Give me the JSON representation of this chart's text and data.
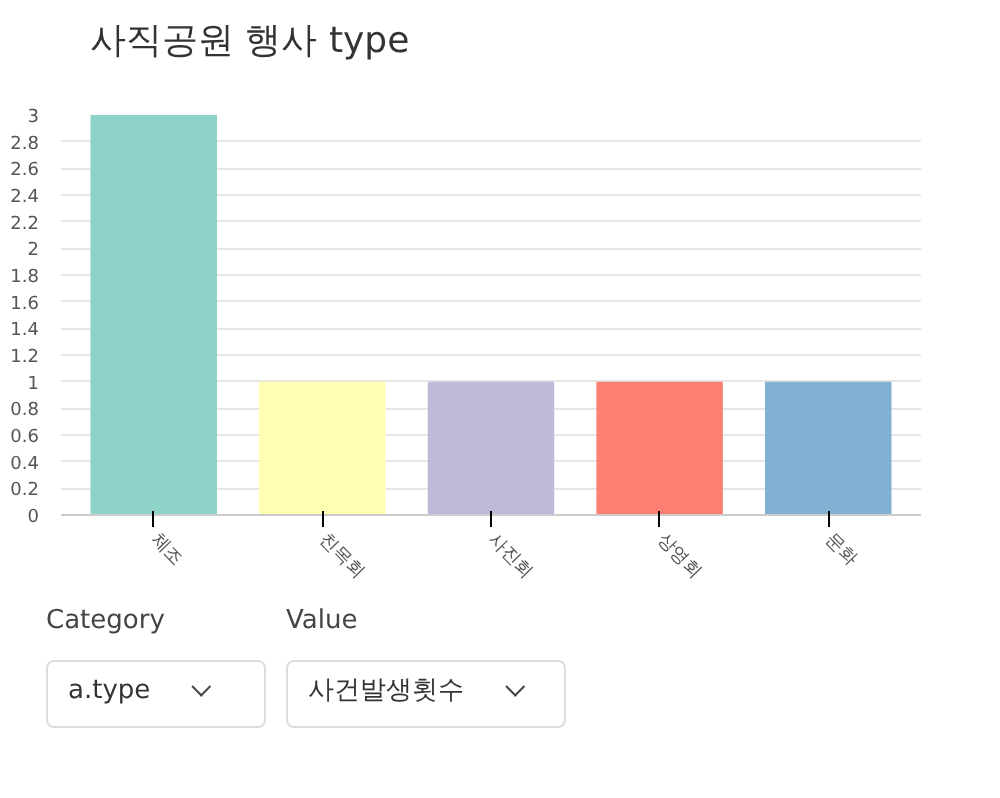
{
  "chart_data": {
    "type": "bar",
    "title": "사직공원 행사 type",
    "categories": [
      "체조",
      "친목회",
      "사진회",
      "상영회",
      "문화"
    ],
    "values": [
      3,
      1,
      1,
      1,
      1
    ],
    "colors": [
      "#8dd3c7",
      "#ffffb3",
      "#bebada",
      "#fb8072",
      "#80b1d3"
    ],
    "ylim": [
      0,
      3
    ],
    "yticks": [
      0,
      0.2,
      0.4,
      0.6,
      0.8,
      1,
      1.2,
      1.4,
      1.6,
      1.8,
      2,
      2.2,
      2.4,
      2.6,
      2.8,
      3
    ],
    "grid": "y",
    "annotations": [
      "Category",
      "a.type",
      "Value",
      "사건발생횟수"
    ]
  }
}
